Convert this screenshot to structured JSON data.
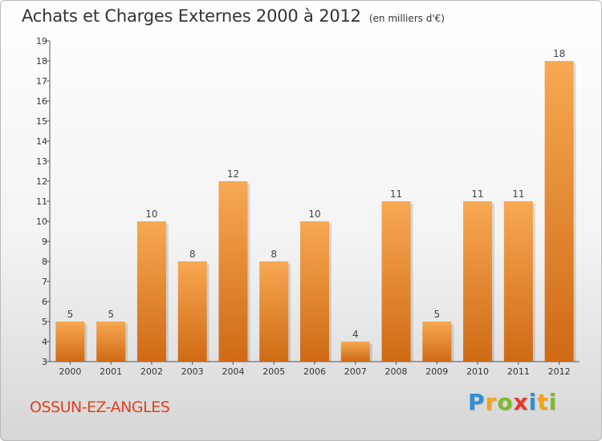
{
  "title": "Achats et Charges Externes 2000 à 2012",
  "subtitle": "(en milliers d'€)",
  "commune": "OSSUN-EZ-ANGLES",
  "logo": [
    "P",
    "r",
    "o",
    "x",
    "i",
    "t",
    "i"
  ],
  "colors": {
    "bar_light": "#f8a853",
    "bar_dark": "#cf6a14",
    "title": "#333333",
    "commune": "#e0401e"
  },
  "chart_data": {
    "type": "bar",
    "title": "Achats et Charges Externes 2000 à 2012",
    "subtitle": "(en milliers d'€)",
    "categories": [
      "2000",
      "2001",
      "2002",
      "2003",
      "2004",
      "2005",
      "2006",
      "2007",
      "2008",
      "2009",
      "2010",
      "2011",
      "2012"
    ],
    "values": [
      5,
      5,
      10,
      8,
      12,
      8,
      10,
      4,
      11,
      5,
      11,
      11,
      18
    ],
    "ylim": [
      3,
      19
    ],
    "yticks": [
      3,
      4,
      5,
      6,
      7,
      8,
      9,
      10,
      11,
      12,
      13,
      14,
      15,
      16,
      17,
      18,
      19
    ],
    "grid": false,
    "legend": "none"
  }
}
